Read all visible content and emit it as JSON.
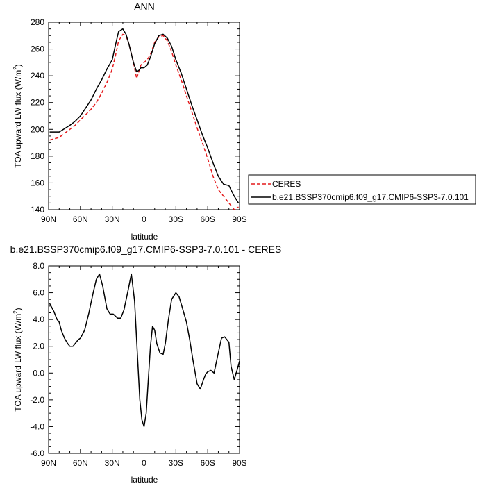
{
  "chart_data": [
    {
      "type": "line",
      "title": "ANN",
      "xlabel": "latitude",
      "ylabel_main": "TOA upward LW flux (W/m",
      "ylabel_sup": "2",
      "ylabel_close": ")",
      "xlim": [
        90,
        -90
      ],
      "ylim": [
        140,
        280
      ],
      "xticks": [
        90,
        60,
        30,
        0,
        -30,
        -60,
        -90
      ],
      "xtick_labels": [
        "90N",
        "60N",
        "30N",
        "0",
        "30S",
        "60S",
        "90S"
      ],
      "yticks": [
        140,
        160,
        180,
        200,
        220,
        240,
        260,
        280
      ],
      "ytick_labels": [
        "140",
        "160",
        "180",
        "200",
        "220",
        "240",
        "260",
        "280"
      ],
      "legend": {
        "position": "right"
      },
      "series": [
        {
          "name": "CERES",
          "color": "#e41a1c",
          "dash": true,
          "x": [
            89,
            80,
            70,
            65,
            60,
            55,
            50,
            45,
            40,
            35,
            30,
            27,
            24,
            20,
            17,
            14,
            10,
            7,
            5,
            3,
            0,
            -3,
            -6,
            -10,
            -14,
            -18,
            -22,
            -26,
            -30,
            -35,
            -40,
            -45,
            -50,
            -55,
            -60,
            -65,
            -70,
            -75,
            -80,
            -85,
            -89
          ],
          "y": [
            192,
            194,
            200,
            203,
            207,
            211,
            215,
            220,
            227,
            235,
            245,
            255,
            266,
            271,
            270,
            263,
            250,
            238,
            243,
            248,
            250,
            252,
            256,
            265,
            269,
            270,
            266,
            258,
            248,
            237,
            225,
            213,
            201,
            190,
            178,
            165,
            155,
            150,
            145,
            140,
            142
          ]
        },
        {
          "name": "b.e21.BSSP370cmip6.f09_g17.CMIP6-SSP3-7.0.101",
          "color": "#000000",
          "dash": false,
          "x": [
            89,
            80,
            70,
            65,
            60,
            55,
            50,
            45,
            40,
            35,
            30,
            27,
            24,
            20,
            17,
            14,
            10,
            7,
            5,
            3,
            0,
            -3,
            -6,
            -10,
            -14,
            -18,
            -22,
            -26,
            -30,
            -35,
            -40,
            -45,
            -50,
            -55,
            -60,
            -65,
            -70,
            -75,
            -80,
            -85,
            -89
          ],
          "y": [
            198,
            198,
            203,
            206,
            210,
            216,
            222,
            230,
            237,
            245,
            252,
            263,
            273,
            275,
            271,
            263,
            250,
            243,
            244,
            246,
            246,
            248,
            254,
            264,
            270,
            271,
            268,
            262,
            252,
            242,
            230,
            218,
            207,
            196,
            186,
            175,
            165,
            159,
            158,
            150,
            145
          ]
        }
      ]
    },
    {
      "type": "line",
      "title": "b.e21.BSSP370cmip6.f09_g17.CMIP6-SSP3-7.0.101 - CERES",
      "xlabel": "latitude",
      "ylabel_main": "TOA upward LW flux (W/m",
      "ylabel_sup": "2",
      "ylabel_close": ")",
      "xlim": [
        90,
        -90
      ],
      "ylim": [
        -6,
        8
      ],
      "xticks": [
        90,
        60,
        30,
        0,
        -30,
        -60,
        -90
      ],
      "xtick_labels": [
        "90N",
        "60N",
        "30N",
        "0",
        "30S",
        "60S",
        "90S"
      ],
      "yticks": [
        -6,
        -4,
        -2,
        0,
        2,
        4,
        6,
        8
      ],
      "ytick_labels": [
        "-6.0",
        "-4.0",
        "-2.0",
        "0.0",
        "2.0",
        "4.0",
        "6.0",
        "8.0"
      ],
      "series": [
        {
          "name": "",
          "color": "#000000",
          "dash": false,
          "x": [
            89,
            85,
            82,
            80,
            78,
            75,
            72,
            70,
            67,
            65,
            62,
            60,
            56,
            52,
            48,
            45,
            42,
            39,
            35,
            32,
            29,
            25,
            22,
            19,
            15,
            12,
            9,
            6,
            4,
            2,
            0,
            -2,
            -4,
            -6,
            -8,
            -10,
            -12,
            -15,
            -18,
            -20,
            -23,
            -26,
            -30,
            -33,
            -36,
            -40,
            -43,
            -46,
            -50,
            -53,
            -56,
            -58,
            -60,
            -63,
            -66,
            -70,
            -73,
            -76,
            -80,
            -82,
            -85,
            -88,
            -90
          ],
          "y": [
            5.2,
            4.6,
            4.0,
            3.8,
            3.2,
            2.6,
            2.2,
            2.0,
            2.0,
            2.2,
            2.5,
            2.6,
            3.2,
            4.5,
            6.0,
            7.0,
            7.4,
            6.5,
            4.8,
            4.4,
            4.4,
            4.1,
            4.1,
            4.7,
            6.2,
            7.4,
            5.4,
            1.0,
            -2.0,
            -3.5,
            -4.0,
            -3.0,
            -0.5,
            2.0,
            3.5,
            3.2,
            2.2,
            1.5,
            1.4,
            2.2,
            4.0,
            5.5,
            6.0,
            5.7,
            4.9,
            3.8,
            2.5,
            1.0,
            -0.8,
            -1.2,
            -0.5,
            -0.1,
            0.1,
            0.2,
            0.0,
            1.5,
            2.6,
            2.7,
            2.3,
            0.5,
            -0.5,
            0.3,
            0.9
          ]
        }
      ]
    }
  ]
}
